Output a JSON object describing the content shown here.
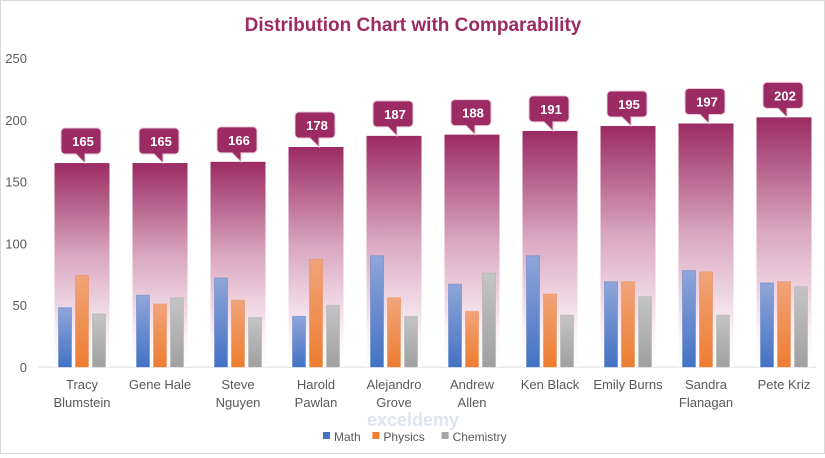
{
  "chart_data": {
    "type": "bar",
    "title": "Distribution Chart with Comparability",
    "categories": [
      [
        "Tracy",
        "Blumstein"
      ],
      [
        "Gene Hale"
      ],
      [
        "Steve",
        "Nguyen"
      ],
      [
        "Harold",
        "Pawlan"
      ],
      [
        "Alejandro",
        "Grove"
      ],
      [
        "Andrew",
        "Allen"
      ],
      [
        "Ken Black"
      ],
      [
        "Emily Burns"
      ],
      [
        "Sandra",
        "Flanagan"
      ],
      [
        "Pete Kriz"
      ]
    ],
    "series": [
      {
        "name": "Math",
        "color": "#4472c4",
        "values": [
          48,
          58,
          72,
          41,
          90,
          67,
          90,
          69,
          78,
          68
        ]
      },
      {
        "name": "Physics",
        "color": "#ed7d31",
        "values": [
          74,
          51,
          54,
          87,
          56,
          45,
          59,
          69,
          77,
          69
        ]
      },
      {
        "name": "Chemistry",
        "color": "#a5a5a5",
        "values": [
          43,
          56,
          40,
          50,
          41,
          76,
          42,
          57,
          42,
          65
        ]
      }
    ],
    "totals": {
      "name": "Total",
      "color": "#9b2b62",
      "values": [
        165,
        165,
        166,
        178,
        187,
        188,
        191,
        195,
        197,
        202
      ]
    },
    "ylim": [
      0,
      250
    ],
    "yticks": [
      0,
      50,
      100,
      150,
      200,
      250
    ],
    "grid": false,
    "legend": "bottom",
    "xlabel": "",
    "ylabel": ""
  },
  "watermark": "exceldemy"
}
